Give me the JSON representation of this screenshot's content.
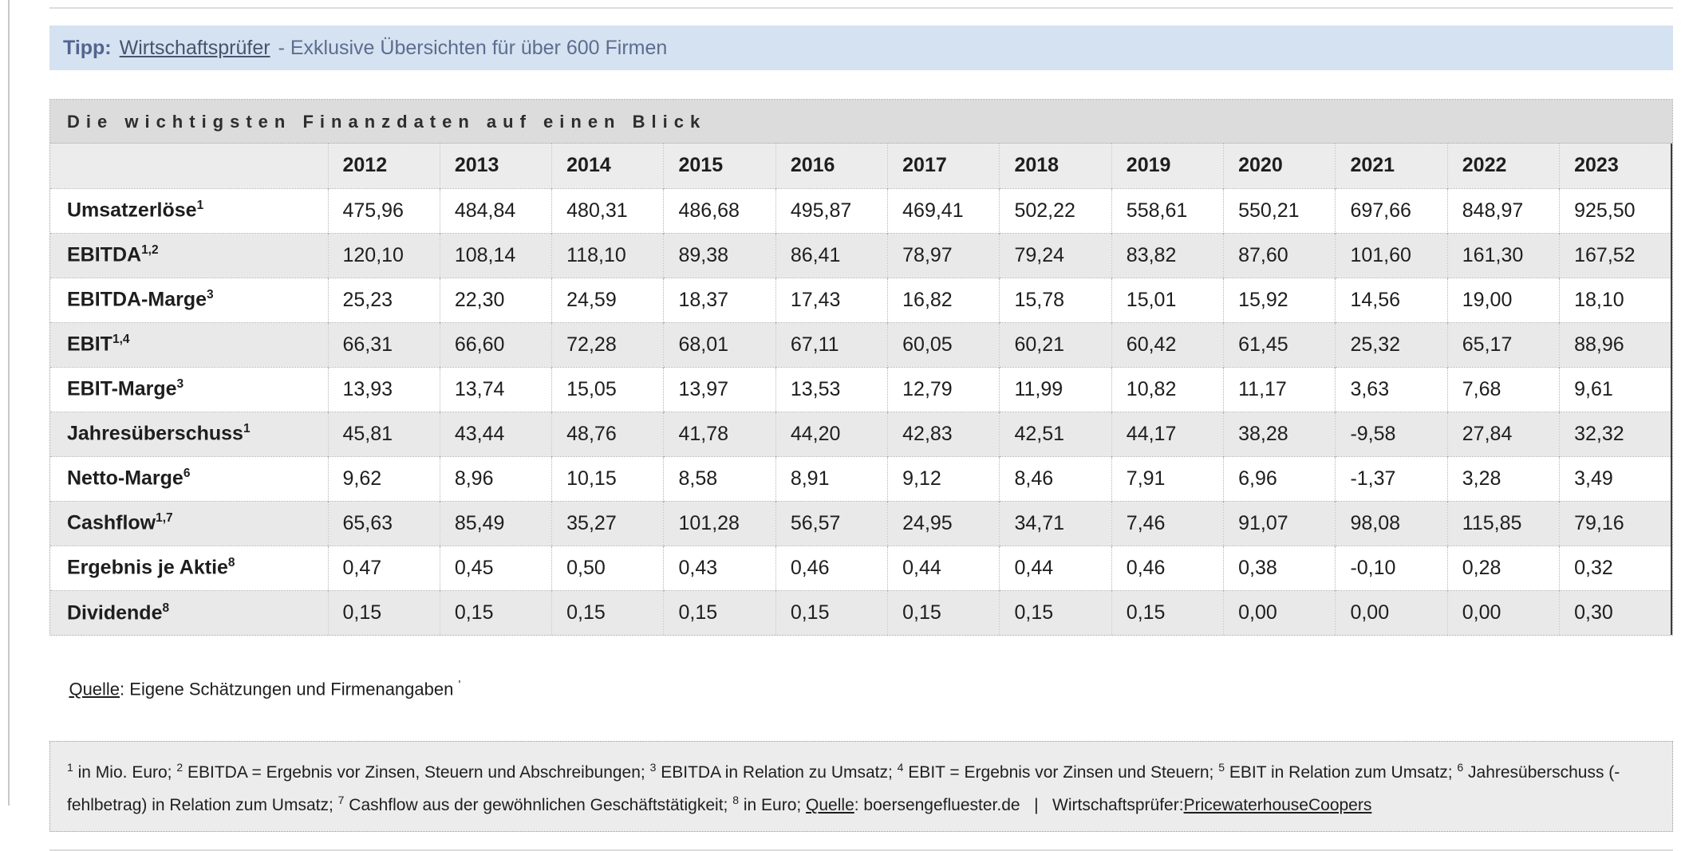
{
  "colors": {
    "banner_bg": "#d5e2f1",
    "banner_text": "#5d6d8e",
    "panel_title_bg": "#dcdcdc",
    "header_row_bg": "#ececec",
    "stripe_bg": "#e9e9e9",
    "footnote_bg": "#ececec",
    "table_right_border": "#3c3c3c"
  },
  "banner": {
    "tip_label": "Tipp:",
    "link_text": "Wirtschaftsprüfer",
    "rest_text": "- Exklusive Übersichten für über 600 Firmen"
  },
  "panel": {
    "title": "Die wichtigsten Finanzdaten auf einen Blick"
  },
  "table": {
    "years": [
      "2012",
      "2013",
      "2014",
      "2015",
      "2016",
      "2017",
      "2018",
      "2019",
      "2020",
      "2021",
      "2022",
      "2023"
    ],
    "rows": [
      {
        "label": "Umsatzerlöse",
        "sup": "1",
        "values": [
          "475,96",
          "484,84",
          "480,31",
          "486,68",
          "495,87",
          "469,41",
          "502,22",
          "558,61",
          "550,21",
          "697,66",
          "848,97",
          "925,50"
        ]
      },
      {
        "label": "EBITDA",
        "sup": "1,2",
        "values": [
          "120,10",
          "108,14",
          "118,10",
          "89,38",
          "86,41",
          "78,97",
          "79,24",
          "83,82",
          "87,60",
          "101,60",
          "161,30",
          "167,52"
        ]
      },
      {
        "label": "EBITDA-Marge",
        "sup": "3",
        "values": [
          "25,23",
          "22,30",
          "24,59",
          "18,37",
          "17,43",
          "16,82",
          "15,78",
          "15,01",
          "15,92",
          "14,56",
          "19,00",
          "18,10"
        ]
      },
      {
        "label": "EBIT",
        "sup": "1,4",
        "values": [
          "66,31",
          "66,60",
          "72,28",
          "68,01",
          "67,11",
          "60,05",
          "60,21",
          "60,42",
          "61,45",
          "25,32",
          "65,17",
          "88,96"
        ]
      },
      {
        "label": "EBIT-Marge",
        "sup": "3",
        "values": [
          "13,93",
          "13,74",
          "15,05",
          "13,97",
          "13,53",
          "12,79",
          "11,99",
          "10,82",
          "11,17",
          "3,63",
          "7,68",
          "9,61"
        ]
      },
      {
        "label": "Jahresüberschuss",
        "sup": "1",
        "values": [
          "45,81",
          "43,44",
          "48,76",
          "41,78",
          "44,20",
          "42,83",
          "42,51",
          "44,17",
          "38,28",
          "-9,58",
          "27,84",
          "32,32"
        ]
      },
      {
        "label": "Netto-Marge",
        "sup": "6",
        "values": [
          "9,62",
          "8,96",
          "10,15",
          "8,58",
          "8,91",
          "9,12",
          "8,46",
          "7,91",
          "6,96",
          "-1,37",
          "3,28",
          "3,49"
        ]
      },
      {
        "label": "Cashflow",
        "sup": "1,7",
        "values": [
          "65,63",
          "85,49",
          "35,27",
          "101,28",
          "56,57",
          "24,95",
          "34,71",
          "7,46",
          "91,07",
          "98,08",
          "115,85",
          "79,16"
        ]
      },
      {
        "label": "Ergebnis je Aktie",
        "sup": "8",
        "values": [
          "0,47",
          "0,45",
          "0,50",
          "0,43",
          "0,46",
          "0,44",
          "0,44",
          "0,46",
          "0,38",
          "-0,10",
          "0,28",
          "0,32"
        ]
      },
      {
        "label": "Dividende",
        "sup": "8",
        "values": [
          "0,15",
          "0,15",
          "0,15",
          "0,15",
          "0,15",
          "0,15",
          "0,15",
          "0,15",
          "0,00",
          "0,00",
          "0,00",
          "0,30"
        ]
      }
    ]
  },
  "source_line": {
    "label": "Quelle",
    "rest": ": Eigene Schätzungen und Firmenangaben ",
    "mark": "'"
  },
  "footnotes": {
    "segments": [
      {
        "sup": "1"
      },
      {
        "text": " in Mio. Euro; "
      },
      {
        "sup": "2"
      },
      {
        "text": " EBITDA = Ergebnis vor Zinsen, Steuern und Abschreibungen; "
      },
      {
        "sup": "3"
      },
      {
        "text": " EBITDA in Relation zu Umsatz; "
      },
      {
        "sup": "4"
      },
      {
        "text": " EBIT = Ergebnis vor Zinsen und Steuern; "
      },
      {
        "sup": "5"
      },
      {
        "text": " EBIT in Relation zum Umsatz; "
      },
      {
        "sup": "6"
      },
      {
        "text": " Jahresüberschuss (-fehlbetrag) in Relation zum Umsatz; "
      },
      {
        "sup": "7"
      },
      {
        "text": " Cashflow aus der gewöhnlichen Geschäftstätigkeit; "
      },
      {
        "sup": "8"
      },
      {
        "text": " in Euro; "
      },
      {
        "underline": "Quelle"
      },
      {
        "text": ": boersengefluester.de   |   Wirtschaftsprüfer:"
      },
      {
        "link": "PricewaterhouseCoopers"
      }
    ]
  }
}
